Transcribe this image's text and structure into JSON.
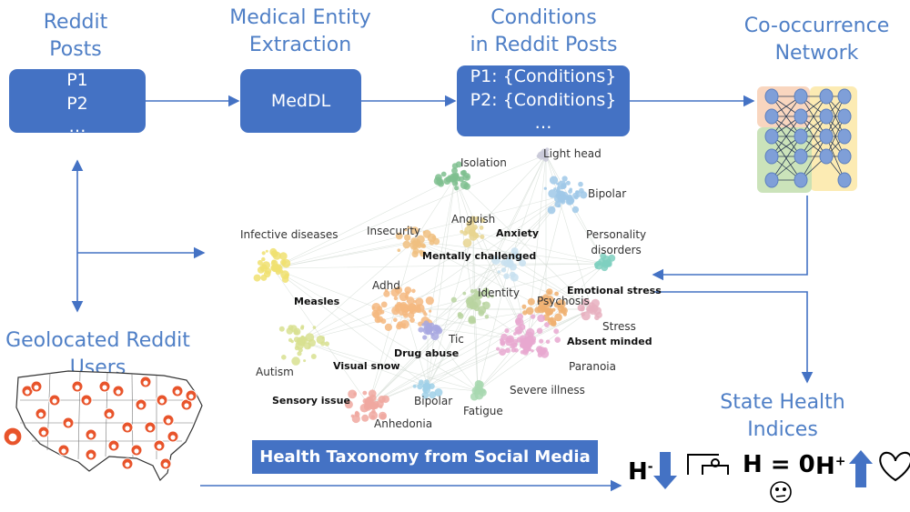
{
  "titles": {
    "reddit_posts": [
      "Reddit",
      "Posts"
    ],
    "extraction": [
      "Medical Entity",
      "Extraction"
    ],
    "conditions": [
      "Conditions",
      "in Reddit Posts"
    ],
    "network": [
      "Co-occurrence",
      "Network"
    ],
    "geolocated": [
      "Geolocated Reddit",
      "Users"
    ],
    "state_health": [
      "State Health",
      "Indices"
    ]
  },
  "boxes": {
    "posts": [
      "P1",
      "P2",
      "…"
    ],
    "meddl": "MedDL",
    "conditions": [
      "P1: {Conditions}",
      "P2: {Conditions}",
      "…"
    ]
  },
  "taxonomy_caption": "Health Taxonomy from Social Media",
  "network_labels": {
    "isolation": "Isolation",
    "light_head": "Light head",
    "bipolar_top": "Bipolar",
    "anguish": "Anguish",
    "insecurity": "Insecurity",
    "anxiety": "Anxiety",
    "personality": [
      "Personality",
      "disorders"
    ],
    "infective": "Infective diseases",
    "mentally": "Mentally challenged",
    "emotional": "Emotional stress",
    "adhd": "Adhd",
    "identity": "Identity",
    "psychosis": "Psychosis",
    "measles": "Measles",
    "stress": "Stress",
    "tic": "Tic",
    "absent": "Absent minded",
    "drug": "Drug abuse",
    "autism": "Autism",
    "visual_snow": "Visual snow",
    "paranoia": "Paranoia",
    "severe": "Severe illness",
    "sensory": "Sensory issue",
    "bipolar_bottom": "Bipolar",
    "fatigue": "Fatigue",
    "anhedonia": "Anhedonia"
  },
  "indices": {
    "h_minus": "H",
    "h_minus_sup": "-",
    "h_zero": "H = 0",
    "h_plus": "H",
    "h_plus_sup": "+"
  },
  "colors": {
    "accent": "#4472c4",
    "title": "#4f7fc6",
    "reddit": "#e8542b"
  }
}
